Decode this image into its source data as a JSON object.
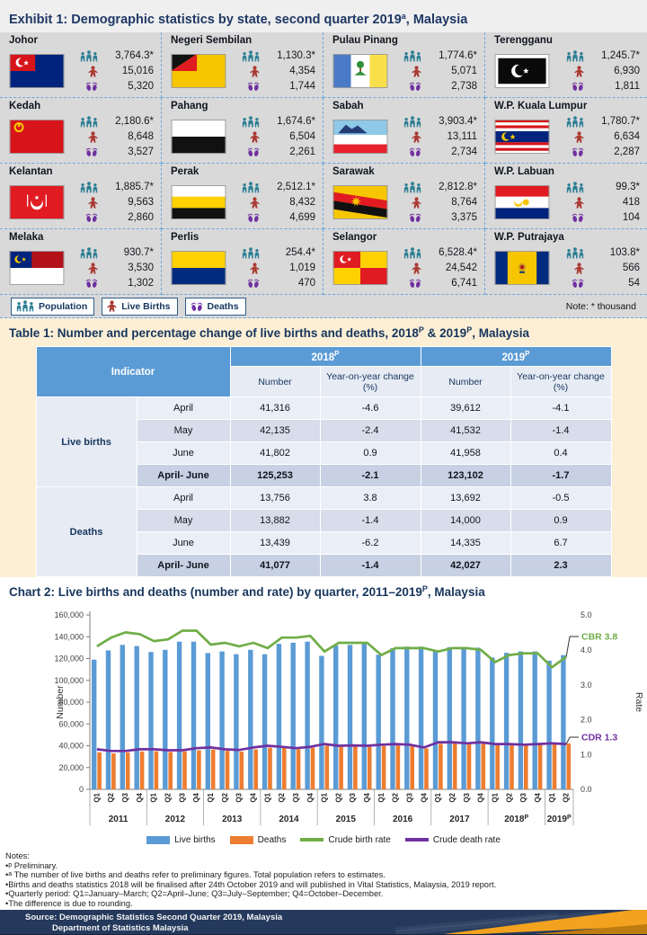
{
  "exhibit": {
    "title_parts": [
      "Exhibit 1: Demographic statistics by state, second quarter 2019",
      "a",
      ", Malaysia"
    ],
    "note": "Note: * thousand",
    "legend": [
      {
        "icon": "population-icon",
        "label": "Population"
      },
      {
        "icon": "live-births-icon",
        "label": "Live Births"
      },
      {
        "icon": "deaths-icon",
        "label": "Deaths"
      }
    ],
    "states": [
      {
        "name": "Johor",
        "flag": "johor",
        "population": "3,764.3*",
        "live_births": "15,016",
        "deaths": "5,320"
      },
      {
        "name": "Negeri Sembilan",
        "flag": "negeri-sembilan",
        "population": "1,130.3*",
        "live_births": "4,354",
        "deaths": "1,744"
      },
      {
        "name": "Pulau Pinang",
        "flag": "pulau-pinang",
        "population": "1,774.6*",
        "live_births": "5,071",
        "deaths": "2,738"
      },
      {
        "name": "Terengganu",
        "flag": "terengganu",
        "population": "1,245.7*",
        "live_births": "6,930",
        "deaths": "1,811"
      },
      {
        "name": "Kedah",
        "flag": "kedah",
        "population": "2,180.6*",
        "live_births": "8,648",
        "deaths": "3,527"
      },
      {
        "name": "Pahang",
        "flag": "pahang",
        "population": "1,674.6*",
        "live_births": "6,504",
        "deaths": "2,261"
      },
      {
        "name": "Sabah",
        "flag": "sabah",
        "population": "3,903.4*",
        "live_births": "13,111",
        "deaths": "2,734"
      },
      {
        "name": "W.P. Kuala Lumpur",
        "flag": "kuala-lumpur",
        "population": "1,780.7*",
        "live_births": "6,634",
        "deaths": "2,287"
      },
      {
        "name": "Kelantan",
        "flag": "kelantan",
        "population": "1,885.7*",
        "live_births": "9,563",
        "deaths": "2,860"
      },
      {
        "name": "Perak",
        "flag": "perak",
        "population": "2,512.1*",
        "live_births": "8,432",
        "deaths": "4,699"
      },
      {
        "name": "Sarawak",
        "flag": "sarawak",
        "population": "2,812.8*",
        "live_births": "8,764",
        "deaths": "3,375"
      },
      {
        "name": "W.P. Labuan",
        "flag": "labuan",
        "population": "99.3*",
        "live_births": "418",
        "deaths": "104"
      },
      {
        "name": "Melaka",
        "flag": "melaka",
        "population": "930.7*",
        "live_births": "3,530",
        "deaths": "1,302"
      },
      {
        "name": "Perlis",
        "flag": "perlis",
        "population": "254.4*",
        "live_births": "1,019",
        "deaths": "470"
      },
      {
        "name": "Selangor",
        "flag": "selangor",
        "population": "6,528.4*",
        "live_births": "24,542",
        "deaths": "6,741"
      },
      {
        "name": "W.P. Putrajaya",
        "flag": "putrajaya",
        "population": "103.8*",
        "live_births": "566",
        "deaths": "54"
      }
    ]
  },
  "table": {
    "title_parts": [
      "Table 1: Number and percentage change of live births and deaths, 2018",
      "P",
      " & 2019",
      "P",
      ", Malaysia"
    ],
    "header": {
      "indicator": "Indicator",
      "y2018": "2018",
      "y2019": "2019",
      "sup": "P",
      "number": "Number",
      "yoy": "Year-on-year change (%)"
    },
    "sections": [
      {
        "label": "Live births",
        "rows": [
          {
            "period": "April",
            "n2018": "41,316",
            "c2018": "-4.6",
            "n2019": "39,612",
            "c2019": "-4.1",
            "total": false
          },
          {
            "period": "May",
            "n2018": "42,135",
            "c2018": "-2.4",
            "n2019": "41,532",
            "c2019": "-1.4",
            "total": false
          },
          {
            "period": "June",
            "n2018": "41,802",
            "c2018": "0.9",
            "n2019": "41,958",
            "c2019": "0.4",
            "total": false
          },
          {
            "period": "April- June",
            "n2018": "125,253",
            "c2018": "-2.1",
            "n2019": "123,102",
            "c2019": "-1.7",
            "total": true
          }
        ]
      },
      {
        "label": "Deaths",
        "rows": [
          {
            "period": "April",
            "n2018": "13,756",
            "c2018": "3.8",
            "n2019": "13,692",
            "c2019": "-0.5",
            "total": false
          },
          {
            "period": "May",
            "n2018": "13,882",
            "c2018": "-1.4",
            "n2019": "14,000",
            "c2019": "0.9",
            "total": false
          },
          {
            "period": "June",
            "n2018": "13,439",
            "c2018": "-6.2",
            "n2019": "14,335",
            "c2019": "6.7",
            "total": false
          },
          {
            "period": "April- June",
            "n2018": "41,077",
            "c2018": "-1.4",
            "n2019": "42,027",
            "c2019": "2.3",
            "total": true
          }
        ]
      }
    ]
  },
  "chart_title_parts": [
    "Chart 2: Live births and deaths (number and rate) by quarter, 2011–2019",
    "P",
    ", Malaysia"
  ],
  "chart_data": {
    "type": "bar+line",
    "title": "Chart 2: Live births and deaths (number and rate) by quarter, 2011-2019P, Malaysia",
    "ylabel_left": "Number",
    "ylabel_right": "Rate",
    "ylim_left": [
      0,
      160000
    ],
    "ytick_step_left": 20000,
    "ylim_right": [
      0,
      5
    ],
    "ytick_step_right": 1,
    "grid": false,
    "legend_position": "bottom",
    "years": [
      {
        "label": "2011",
        "sup": "",
        "q": 4
      },
      {
        "label": "2012",
        "sup": "",
        "q": 4
      },
      {
        "label": "2013",
        "sup": "",
        "q": 4
      },
      {
        "label": "2014",
        "sup": "",
        "q": 4
      },
      {
        "label": "2015",
        "sup": "",
        "q": 4
      },
      {
        "label": "2016",
        "sup": "",
        "q": 4
      },
      {
        "label": "2017",
        "sup": "",
        "q": 4
      },
      {
        "label": "2018",
        "sup": "P",
        "q": 4
      },
      {
        "label": "2019",
        "sup": "P",
        "q": 2
      }
    ],
    "series": [
      {
        "name": "Live births",
        "type": "bar",
        "axis": "left",
        "color": "#5B9BD5",
        "values": [
          119000,
          127500,
          132500,
          131500,
          126000,
          128000,
          135500,
          135500,
          125000,
          126500,
          124000,
          128000,
          124000,
          133500,
          134500,
          135500,
          122500,
          132000,
          132500,
          134000,
          123500,
          129500,
          131000,
          131000,
          127500,
          130500,
          130500,
          130000,
          121000,
          125253,
          126500,
          126500,
          118000,
          123102
        ]
      },
      {
        "name": "Deaths",
        "type": "bar",
        "axis": "left",
        "color": "#ED7D31",
        "values": [
          34000,
          33000,
          33800,
          34800,
          35000,
          34300,
          34800,
          35800,
          36500,
          35400,
          34600,
          36600,
          38300,
          38000,
          36800,
          38300,
          40000,
          39000,
          39300,
          39000,
          39800,
          40300,
          40000,
          37500,
          41800,
          42200,
          41400,
          42100,
          41000,
          41077,
          40400,
          40800,
          41500,
          42027
        ]
      },
      {
        "name": "Crude birth rate",
        "type": "line",
        "axis": "right",
        "color": "#70AD47",
        "values": [
          4.1,
          4.35,
          4.5,
          4.45,
          4.25,
          4.3,
          4.55,
          4.55,
          4.15,
          4.2,
          4.1,
          4.2,
          4.05,
          4.35,
          4.35,
          4.4,
          3.95,
          4.2,
          4.2,
          4.2,
          3.85,
          4.05,
          4.05,
          4.05,
          3.95,
          4.05,
          4.05,
          4.0,
          3.65,
          3.85,
          3.9,
          3.9,
          3.5,
          3.8
        ]
      },
      {
        "name": "Crude death rate",
        "type": "line",
        "axis": "right",
        "color": "#7030A0",
        "values": [
          1.15,
          1.1,
          1.1,
          1.15,
          1.15,
          1.12,
          1.12,
          1.18,
          1.2,
          1.15,
          1.13,
          1.2,
          1.25,
          1.22,
          1.18,
          1.22,
          1.3,
          1.25,
          1.26,
          1.25,
          1.28,
          1.3,
          1.28,
          1.2,
          1.35,
          1.35,
          1.32,
          1.35,
          1.3,
          1.3,
          1.28,
          1.3,
          1.32,
          1.3
        ]
      }
    ],
    "annotations": [
      {
        "text": "CBR 3.8",
        "color": "#70AD47"
      },
      {
        "text": "CDR 1.3",
        "color": "#7030A0"
      }
    ]
  },
  "notes": {
    "heading": "Notes:",
    "items": [
      {
        "sup": "p",
        "text": " Preliminary."
      },
      {
        "sup": "a",
        "text": " The number of live births and deaths refer to preliminary figures. Total population refers to estimates."
      },
      {
        "sup": "",
        "text": "Births and deaths statistics 2018 will be finalised after 24th October 2019 and will published in Vital Statistics, Malaysia, 2019 report."
      },
      {
        "sup": "",
        "text": "Quarterly period: Q1=January–March; Q2=April–June; Q3=July–September; Q4=October–December."
      },
      {
        "sup": "",
        "text": "The difference is due to rounding."
      }
    ]
  },
  "footer": {
    "lines": [
      "Source: Demographic Statistics Second Quarter 2019, Malaysia",
      "Department of Statistics Malaysia"
    ]
  },
  "colors": {
    "accent_blue": "#5B9BD5",
    "bar_deaths_orange": "#ED7D31",
    "line_cbr_green": "#70AD47",
    "line_cdr_purple": "#7030A0",
    "title_navy": "#1F3864",
    "panel_gray": "#D9D9D9",
    "table_bg_cream": "#FCEFD5",
    "dashed_border_blue": "#6FA8DC",
    "footer_navy": "#24395C",
    "footer_orange": "#F2A21E",
    "icon_population_teal": "#2E7F95",
    "icon_births_red": "#A93A32",
    "icon_deaths_purple": "#7030A0"
  }
}
